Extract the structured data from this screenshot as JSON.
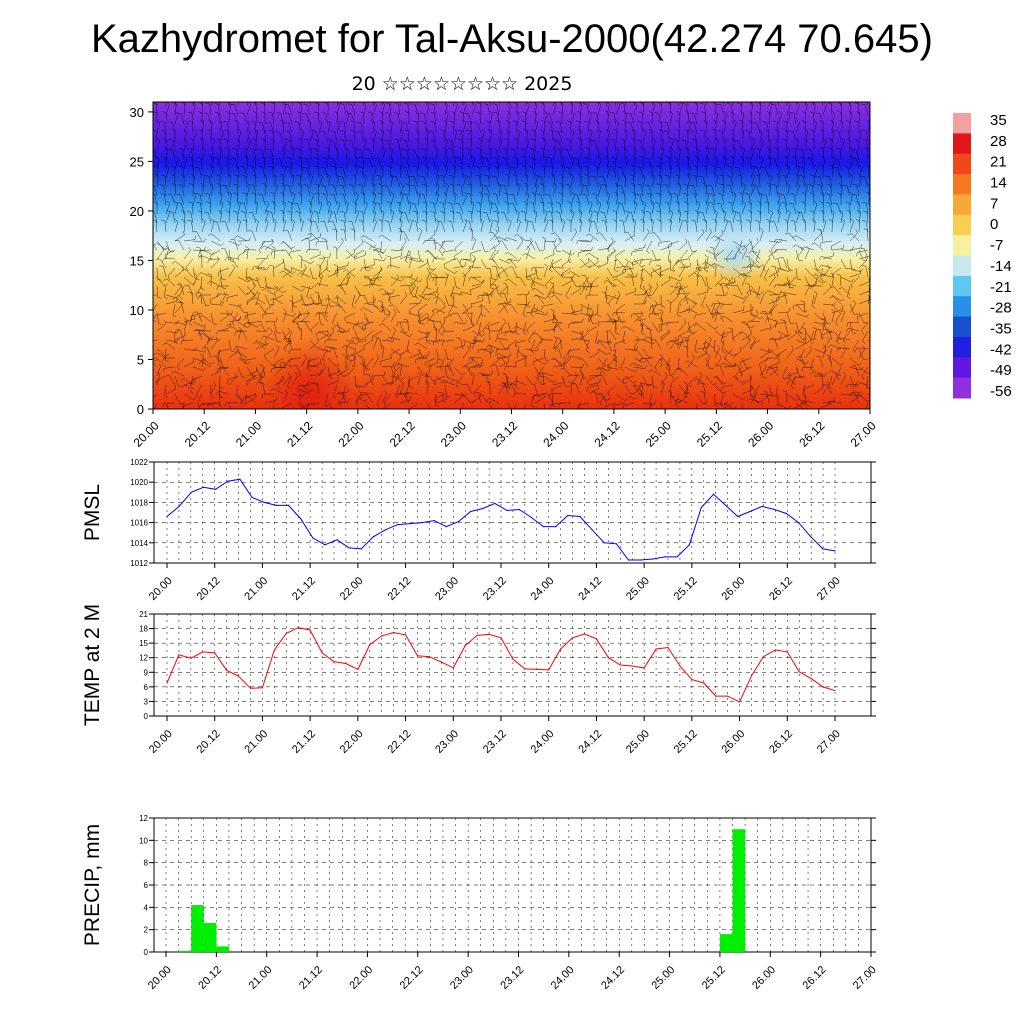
{
  "page": {
    "title": "Kazhydromet for Tal-Aksu-2000(42.274 70.645)",
    "subtitle": "20 ☆☆☆☆☆☆☆☆ 2025"
  },
  "chart_data": [
    {
      "type": "heatmap",
      "xlabel": "",
      "ylabel": "",
      "x_tick_labels": [
        "20.00",
        "20.12",
        "21.00",
        "21.12",
        "22.00",
        "22.12",
        "23.00",
        "23.12",
        "24.00",
        "24.12",
        "25.00",
        "25.12",
        "26.00",
        "26.12",
        "27.00"
      ],
      "ylim": [
        0,
        31
      ],
      "y_ticks": [
        0,
        5,
        10,
        15,
        20,
        25,
        30
      ],
      "colorbar": {
        "labels": [
          "35",
          "28",
          "21",
          "14",
          "7",
          "0",
          "-7",
          "-14",
          "-21",
          "-28",
          "-35",
          "-42",
          "-49",
          "-56"
        ],
        "colors": [
          "#f4a0a0",
          "#e01818",
          "#f04818",
          "#f87820",
          "#f8a838",
          "#f8d050",
          "#f8f0a0",
          "#c8e8f0",
          "#60c8f0",
          "#2890e8",
          "#1850d0",
          "#2020e0",
          "#6018e0",
          "#9030e0"
        ]
      },
      "note_overlay": "wind barbs"
    },
    {
      "type": "line",
      "ylabel": "PMSL",
      "ylim": [
        1012,
        1022
      ],
      "y_ticks": [
        1012,
        1014,
        1016,
        1018,
        1020,
        1022
      ],
      "x_tick_labels": [
        "20.00",
        "20.12",
        "21.00",
        "21.12",
        "22.00",
        "22.12",
        "23.00",
        "23.12",
        "24.00",
        "24.12",
        "25.00",
        "25.12",
        "26.00",
        "26.12",
        "27.00"
      ],
      "series": [
        {
          "color": "#0000ff",
          "values": [
            1016.6,
            1017.6,
            1019.0,
            1019.5,
            1019.3,
            1020.1,
            1020.3,
            1018.5,
            1018.0,
            1017.7,
            1017.7,
            1016.4,
            1014.5,
            1013.8,
            1014.3,
            1013.5,
            1013.4,
            1014.6,
            1015.3,
            1015.8,
            1015.9,
            1016.0,
            1016.2,
            1015.6,
            1016.1,
            1017.1,
            1017.4,
            1017.9,
            1017.2,
            1017.3,
            1016.5,
            1015.6,
            1015.6,
            1016.7,
            1016.6,
            1015.3,
            1014.0,
            1013.9,
            1012.3,
            1012.3,
            1012.4,
            1012.6,
            1012.6,
            1013.8,
            1017.5,
            1018.8,
            1017.7,
            1016.6,
            1017.1,
            1017.6,
            1017.3,
            1016.9,
            1016.0,
            1014.6,
            1013.4,
            1013.2
          ]
        }
      ]
    },
    {
      "type": "line",
      "ylabel": "TEMP at 2 M",
      "ylim": [
        0,
        21
      ],
      "y_ticks": [
        0,
        3,
        6,
        9,
        12,
        15,
        18,
        21
      ],
      "x_tick_labels": [
        "20.00",
        "20.12",
        "21.00",
        "21.12",
        "22.00",
        "22.12",
        "23.00",
        "23.12",
        "24.00",
        "24.12",
        "25.00",
        "25.12",
        "26.00",
        "26.12",
        "27.00"
      ],
      "series": [
        {
          "color": "#ff0000",
          "values": [
            6.8,
            12.6,
            11.9,
            13.2,
            13.0,
            9.4,
            8.2,
            5.7,
            5.8,
            13.6,
            17.0,
            18.2,
            17.7,
            13.0,
            11.2,
            10.8,
            9.6,
            14.7,
            16.5,
            17.2,
            16.7,
            12.4,
            12.2,
            11.1,
            9.9,
            14.5,
            16.6,
            16.8,
            16.1,
            11.7,
            9.7,
            9.6,
            9.5,
            13.8,
            16.1,
            16.9,
            15.9,
            12.0,
            10.5,
            10.3,
            9.9,
            13.8,
            14.1,
            10.3,
            7.5,
            6.8,
            4.1,
            4.1,
            2.9,
            8.3,
            12.2,
            13.6,
            13.2,
            9.1,
            7.7,
            6.0,
            5.2
          ]
        }
      ]
    },
    {
      "type": "bar",
      "ylabel": "PRECIP, mm",
      "ylim": [
        0,
        12
      ],
      "y_ticks": [
        0,
        2,
        4,
        6,
        8,
        10,
        12
      ],
      "x_tick_labels": [
        "20.00",
        "20.12",
        "21.00",
        "21.12",
        "22.00",
        "22.12",
        "23.00",
        "23.12",
        "24.00",
        "24.12",
        "25.00",
        "25.12",
        "26.00",
        "26.12",
        "27.00"
      ],
      "series": [
        {
          "color": "#00ee00",
          "values": [
            0,
            0.1,
            4.2,
            2.6,
            0.5,
            0,
            0,
            0,
            0,
            0,
            0,
            0,
            0,
            0,
            0,
            0,
            0,
            0,
            0,
            0,
            0,
            0,
            0,
            0,
            0,
            0,
            0,
            0,
            0,
            0,
            0,
            0,
            0,
            0,
            0,
            0,
            0,
            0,
            0,
            0,
            0,
            0,
            0,
            0,
            1.6,
            11.0,
            0,
            0,
            0,
            0,
            0,
            0,
            0,
            0,
            0,
            0
          ]
        }
      ]
    }
  ]
}
